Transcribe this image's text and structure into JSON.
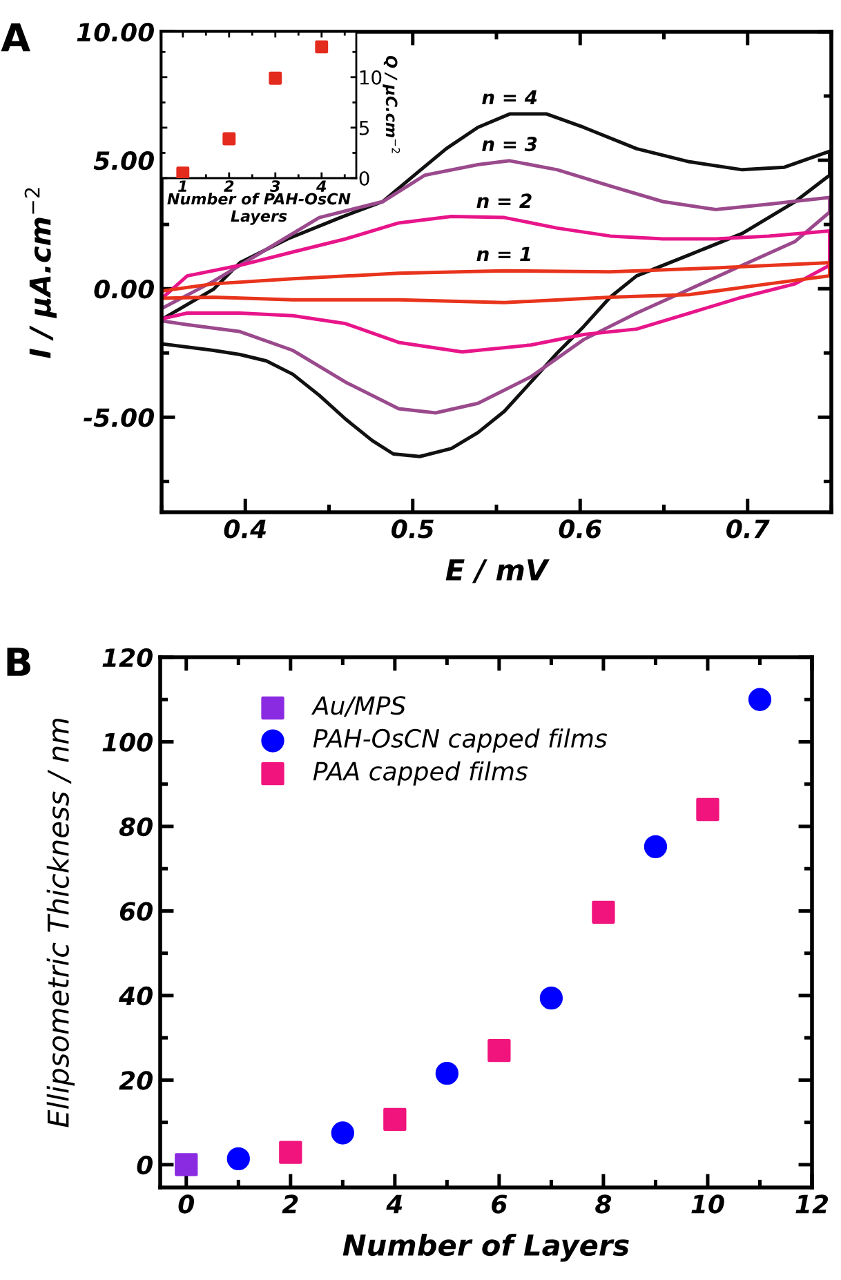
{
  "chart_data": [
    {
      "type": "line",
      "xlabel": "E / mV",
      "ylabel": "I / μA.cm$^{−2}$",
      "xlim": [
        0.35,
        0.75
      ],
      "ylim": [
        -8.7,
        10
      ],
      "xticks": [
        0.4,
        0.5,
        0.6,
        0.7
      ],
      "yticks": [
        {
          "value": -5,
          "label": "-5.00"
        },
        {
          "value": 0,
          "label": "0.00"
        },
        {
          "value": 5,
          "label": "5.00"
        },
        {
          "value": 10,
          "label": "10.00"
        }
      ],
      "grid": false,
      "legend": false,
      "marker": "none",
      "line_style": "solid",
      "annotations": [
        "A"
      ],
      "series": [
        {
          "name": "n = 4",
          "color": "#111111",
          "x": [
            0.351,
            0.381,
            0.3968,
            0.4253,
            0.4568,
            0.4821,
            0.501,
            0.52,
            0.5389,
            0.5579,
            0.58,
            0.6021,
            0.6337,
            0.6652,
            0.6968,
            0.722,
            0.749,
            0.749,
            0.7284,
            0.6968,
            0.6652,
            0.6337,
            0.6179,
            0.6021,
            0.5863,
            0.5705,
            0.5547,
            0.5389,
            0.5231,
            0.5042,
            0.4884,
            0.4758,
            0.46,
            0.4442,
            0.4284,
            0.4126,
            0.3968,
            0.381,
            0.351
          ],
          "values": [
            -1.16,
            -0.02,
            1.01,
            1.94,
            2.77,
            3.39,
            4.42,
            5.45,
            6.28,
            6.8,
            6.8,
            6.28,
            5.45,
            4.94,
            4.63,
            4.73,
            5.35,
            4.42,
            3.39,
            2.15,
            1.32,
            0.5,
            -0.33,
            -1.47,
            -2.5,
            -3.64,
            -4.77,
            -5.6,
            -6.22,
            -6.53,
            -6.43,
            -5.91,
            -5.08,
            -4.15,
            -3.33,
            -2.81,
            -2.56,
            -2.4,
            -2.15
          ]
        },
        {
          "name": "n = 3",
          "color": "#9a4a8c",
          "x": [
            0.351,
            0.381,
            0.4126,
            0.4442,
            0.4821,
            0.5073,
            0.5389,
            0.5579,
            0.5863,
            0.6179,
            0.6494,
            0.681,
            0.7126,
            0.749,
            0.749,
            0.7284,
            0.6968,
            0.6652,
            0.6337,
            0.6021,
            0.5705,
            0.5389,
            0.5137,
            0.4916,
            0.46,
            0.4284,
            0.3968,
            0.3653,
            0.351
          ],
          "values": [
            -0.74,
            0.29,
            1.53,
            2.77,
            3.39,
            4.42,
            4.83,
            4.98,
            4.63,
            4.0,
            3.39,
            3.08,
            3.29,
            3.55,
            2.98,
            1.84,
            0.91,
            -0.02,
            -0.95,
            -1.98,
            -3.43,
            -4.46,
            -4.83,
            -4.67,
            -3.64,
            -2.4,
            -1.67,
            -1.4,
            -1.26
          ]
        },
        {
          "name": "n = 2",
          "color": "#e8158a",
          "x": [
            0.351,
            0.3653,
            0.3968,
            0.4284,
            0.46,
            0.4916,
            0.5231,
            0.5547,
            0.5863,
            0.6179,
            0.6494,
            0.681,
            0.7126,
            0.749,
            0.749,
            0.7284,
            0.6968,
            0.6652,
            0.6337,
            0.6021,
            0.5705,
            0.5295,
            0.4916,
            0.46,
            0.4284,
            0.3968,
            0.3653,
            0.351
          ],
          "values": [
            -0.33,
            0.5,
            0.91,
            1.43,
            1.94,
            2.56,
            2.81,
            2.77,
            2.36,
            2.05,
            1.94,
            1.94,
            2.05,
            2.25,
            0.91,
            0.19,
            -0.33,
            -0.95,
            -1.57,
            -1.78,
            -2.19,
            -2.46,
            -2.09,
            -1.36,
            -1.05,
            -0.95,
            -0.95,
            -1.16
          ]
        },
        {
          "name": "n = 1",
          "color": "#e8341c",
          "x": [
            0.351,
            0.381,
            0.4284,
            0.4916,
            0.5547,
            0.6179,
            0.681,
            0.749,
            0.749,
            0.7126,
            0.6652,
            0.6179,
            0.5547,
            0.4916,
            0.4284,
            0.381,
            0.351
          ],
          "values": [
            -0.08,
            0.19,
            0.39,
            0.6,
            0.7,
            0.66,
            0.81,
            1.01,
            0.5,
            0.19,
            -0.23,
            -0.33,
            -0.54,
            -0.43,
            -0.43,
            -0.33,
            -0.37
          ]
        }
      ]
    },
    {
      "type": "scatter",
      "xlabel": "Number of PAH-OsCN\nLayers",
      "ylabel": "Q / μC.cm$^{−2}$",
      "xlim": [
        0.54,
        4.75
      ],
      "ylim": [
        0,
        14.5
      ],
      "xticks": [
        1,
        2,
        3,
        4
      ],
      "yticks": [
        0,
        5,
        10
      ],
      "grid": false,
      "legend": false,
      "marker": "square",
      "x": [
        1,
        2,
        3,
        4
      ],
      "series": [
        {
          "color": "#e32b1e",
          "values": [
            0.5,
            3.9,
            9.9,
            13.0
          ]
        }
      ]
    },
    {
      "type": "scatter",
      "xlabel": "Number of Layers",
      "ylabel": "Ellipsometric Thickness / nm",
      "xlim": [
        -0.5,
        12
      ],
      "ylim": [
        -5.4,
        120
      ],
      "xticks": [
        0,
        2,
        4,
        6,
        8,
        10,
        12
      ],
      "yticks": [
        0,
        20,
        40,
        60,
        80,
        100,
        120
      ],
      "grid": false,
      "legend": "top left",
      "annotations": [
        "B"
      ],
      "series": [
        {
          "name": "Au/MPS",
          "color": "#8a2be2",
          "marker": "square",
          "x": [
            0
          ],
          "values": [
            0
          ]
        },
        {
          "name": "PAH-OsCN capped films",
          "color": "#0000ff",
          "marker": "circle",
          "x": [
            1,
            3,
            5,
            7,
            9,
            11
          ],
          "values": [
            1.4,
            7.5,
            21.6,
            39.4,
            75.2,
            110
          ]
        },
        {
          "name": "PAA capped films",
          "color": "#f0147c",
          "marker": "square",
          "x": [
            2,
            4,
            6,
            8,
            10
          ],
          "values": [
            2.9,
            10.7,
            27.0,
            59.7,
            84.0
          ]
        }
      ]
    }
  ]
}
